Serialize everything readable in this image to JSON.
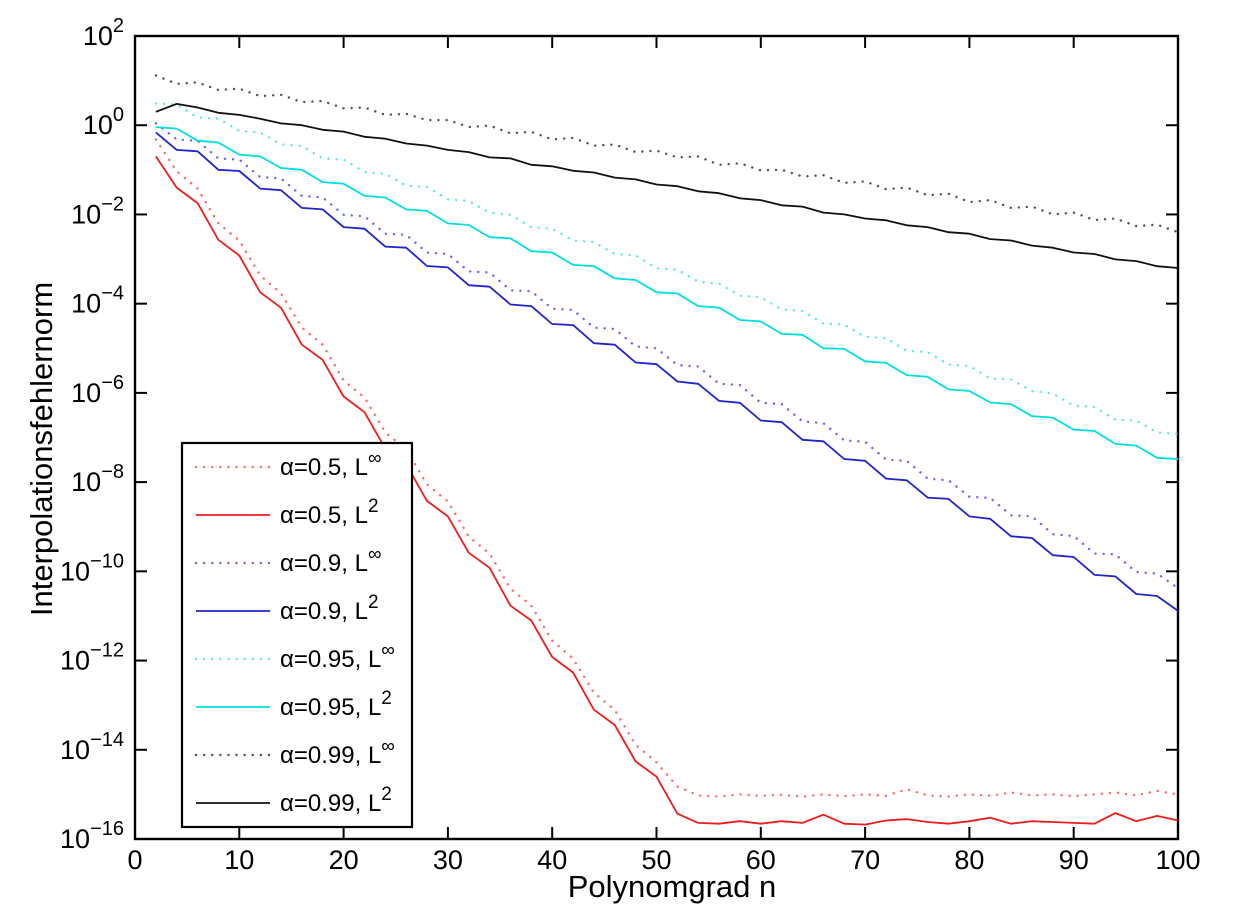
{
  "figure": {
    "background": "#ffffff",
    "axis_color": "#000000"
  },
  "chart_data": {
    "type": "line",
    "title": "",
    "xlabel": "Polynomgrad n",
    "ylabel": "Interpolationsfehlernorm",
    "xlim": [
      0,
      100
    ],
    "ylim_exponents": [
      -16,
      2
    ],
    "x_ticks": [
      0,
      10,
      20,
      30,
      40,
      50,
      60,
      70,
      80,
      90,
      100
    ],
    "y_tick_exponents": [
      2,
      0,
      -2,
      -4,
      -6,
      -8,
      -10,
      -12,
      -14,
      -16
    ],
    "grid": false,
    "legend_position": "lower-left",
    "x": [
      2,
      4,
      6,
      8,
      10,
      12,
      14,
      16,
      18,
      20,
      22,
      24,
      26,
      28,
      30,
      32,
      34,
      36,
      38,
      40,
      42,
      44,
      46,
      48,
      50,
      52,
      54,
      56,
      58,
      60,
      62,
      64,
      66,
      68,
      70,
      72,
      74,
      76,
      78,
      80,
      82,
      84,
      86,
      88,
      90,
      92,
      94,
      96,
      98,
      100
    ],
    "series": [
      {
        "name": "alpha-0.5-Linf",
        "label_base": "α=0.5, L",
        "label_sup": "∞",
        "color": "#ff6a6a",
        "style": "dotted",
        "values": [
          0.48,
          0.093,
          0.038,
          0.0063,
          0.0026,
          0.00043,
          0.00017,
          2.9e-05,
          1.2e-05,
          1.9e-06,
          7.9e-07,
          1.3e-07,
          5.4e-08,
          8.9e-09,
          3.7e-09,
          6e-10,
          2.5e-10,
          4.1e-11,
          1.7e-11,
          2.8e-12,
          1.1e-12,
          1.9e-13,
          7.8e-14,
          1.3e-14,
          5.2e-15,
          1.5e-15,
          9.5e-16,
          8.9e-16,
          1e-15,
          9.3e-16,
          9.8e-16,
          8.9e-16,
          1e-15,
          9.1e-16,
          1e-15,
          9.3e-16,
          1.3e-15,
          9.5e-16,
          8.9e-16,
          1e-15,
          9.3e-16,
          1.1e-15,
          9.5e-16,
          1e-15,
          9.1e-16,
          1e-15,
          1.1e-15,
          9.5e-16,
          1.2e-15,
          1e-15
        ]
      },
      {
        "name": "alpha-0.5-L2",
        "label_base": "α=0.5, L",
        "label_sup": "2",
        "color": "#ee1c1c",
        "style": "solid",
        "values": [
          0.2,
          0.04,
          0.018,
          0.0027,
          0.0012,
          0.00018,
          8.1e-05,
          1.2e-05,
          5.5e-06,
          8.3e-07,
          3.7e-07,
          5.6e-08,
          2.5e-08,
          3.8e-09,
          1.7e-09,
          2.6e-10,
          1.2e-10,
          1.7e-11,
          7.9e-12,
          1.2e-12,
          5.4e-13,
          7.9e-14,
          3.6e-14,
          5.5e-15,
          2.5e-15,
          3.7e-16,
          2.3e-16,
          2.2e-16,
          2.5e-16,
          2.2e-16,
          2.5e-16,
          2.3e-16,
          3.5e-16,
          2.2e-16,
          2.1e-16,
          2.6e-16,
          2.8e-16,
          2.4e-16,
          2.2e-16,
          2.5e-16,
          3e-16,
          2.2e-16,
          2.5e-16,
          2.4e-16,
          2.3e-16,
          2.2e-16,
          3.8e-16,
          2.5e-16,
          3.3e-16,
          2.6e-16
        ]
      },
      {
        "name": "alpha-0.9-Linf",
        "label_base": "α=0.9, L",
        "label_sup": "∞",
        "color": "#6a6aee",
        "style": "dotted",
        "values": [
          1.1,
          0.48,
          0.45,
          0.18,
          0.17,
          0.069,
          0.064,
          0.026,
          0.024,
          0.0098,
          0.0091,
          0.0037,
          0.0035,
          0.0014,
          0.0013,
          0.00053,
          0.0005,
          0.0002,
          0.00019,
          7.7e-05,
          7.2e-05,
          2.9e-05,
          2.7e-05,
          1.1e-05,
          1e-05,
          4.2e-06,
          3.9e-06,
          1.6e-06,
          1.5e-06,
          6e-07,
          5.6e-07,
          2.3e-07,
          2.1e-07,
          8.6e-08,
          8e-08,
          3.2e-08,
          3e-08,
          1.2e-08,
          1.1e-08,
          4.7e-09,
          4.4e-09,
          1.8e-09,
          1.7e-09,
          6.8e-10,
          6.2e-10,
          2.5e-10,
          2.4e-10,
          9.6e-11,
          8.9e-11,
          4.2e-11
        ]
      },
      {
        "name": "alpha-0.9-L2",
        "label_base": "α=0.9, L",
        "label_sup": "2",
        "color": "#2222cc",
        "style": "solid",
        "values": [
          0.69,
          0.28,
          0.26,
          0.1,
          0.094,
          0.038,
          0.035,
          0.014,
          0.013,
          0.0052,
          0.0048,
          0.0019,
          0.0018,
          0.0007,
          0.00065,
          0.00026,
          0.00024,
          9.6e-05,
          8.8e-05,
          3.5e-05,
          3.3e-05,
          1.3e-05,
          1.2e-05,
          4.8e-06,
          4.4e-06,
          1.8e-06,
          1.6e-06,
          6.6e-07,
          6e-07,
          2.4e-07,
          2.2e-07,
          8.9e-08,
          8.2e-08,
          3.3e-08,
          3e-08,
          1.2e-08,
          1.1e-08,
          4.5e-09,
          4.2e-09,
          1.7e-09,
          1.5e-09,
          6.1e-10,
          5.6e-10,
          2.3e-10,
          2.1e-10,
          8.3e-11,
          7.7e-11,
          3.1e-11,
          2.8e-11,
          1.3e-11
        ]
      },
      {
        "name": "alpha-0.95-Linf",
        "label_base": "α=0.95, L",
        "label_sup": "∞",
        "color": "#63e8e8",
        "style": "dotted",
        "values": [
          3.1,
          2.9,
          1.5,
          1.4,
          0.75,
          0.69,
          0.37,
          0.34,
          0.18,
          0.17,
          0.089,
          0.082,
          0.044,
          0.041,
          0.022,
          0.02,
          0.011,
          0.0098,
          0.0052,
          0.0048,
          0.0026,
          0.0024,
          0.0013,
          0.0012,
          0.00062,
          0.00058,
          0.00031,
          0.00028,
          0.00015,
          0.00014,
          7.4e-05,
          6.9e-05,
          3.6e-05,
          3.4e-05,
          1.8e-05,
          1.7e-05,
          8.8e-06,
          8.2e-06,
          4.3e-06,
          4e-06,
          2.1e-06,
          2e-06,
          1.1e-06,
          9.7e-07,
          5.2e-07,
          4.8e-07,
          2.5e-07,
          2.4e-07,
          1.3e-07,
          1.2e-07
        ]
      },
      {
        "name": "alpha-0.95-L2",
        "label_base": "α=0.95, L",
        "label_sup": "2",
        "color": "#00dede",
        "style": "solid",
        "values": [
          0.91,
          0.84,
          0.45,
          0.41,
          0.22,
          0.2,
          0.11,
          0.1,
          0.053,
          0.049,
          0.026,
          0.024,
          0.013,
          0.012,
          0.0063,
          0.0058,
          0.0031,
          0.0029,
          0.0015,
          0.0014,
          0.00074,
          0.00069,
          0.00037,
          0.00034,
          0.00018,
          0.00017,
          8.8e-05,
          8.1e-05,
          4.3e-05,
          4e-05,
          2.1e-05,
          2e-05,
          1e-05,
          9.7e-06,
          5.1e-06,
          4.7e-06,
          2.5e-06,
          2.3e-06,
          1.2e-06,
          1.1e-06,
          6.1e-07,
          5.6e-07,
          3e-07,
          2.8e-07,
          1.5e-07,
          1.4e-07,
          7.2e-08,
          6.6e-08,
          3.5e-08,
          3.3e-08
        ]
      },
      {
        "name": "alpha-0.99-Linf",
        "label_base": "α=0.99, L",
        "label_sup": "∞",
        "color": "#555555",
        "style": "dotted",
        "values": [
          13,
          8.5,
          9.1,
          6.2,
          6.6,
          4.5,
          4.8,
          3.3,
          3.5,
          2.4,
          2.5,
          1.7,
          1.8,
          1.3,
          1.3,
          0.91,
          0.98,
          0.66,
          0.71,
          0.48,
          0.52,
          0.35,
          0.37,
          0.25,
          0.27,
          0.19,
          0.2,
          0.13,
          0.14,
          0.097,
          0.1,
          0.071,
          0.076,
          0.051,
          0.055,
          0.037,
          0.04,
          0.027,
          0.029,
          0.019,
          0.021,
          0.014,
          0.015,
          0.01,
          0.011,
          0.0075,
          0.0081,
          0.0055,
          0.0059,
          0.004
        ]
      },
      {
        "name": "alpha-0.99-L2",
        "label_base": "α=0.99, L",
        "label_sup": "2",
        "color": "#111111",
        "style": "solid",
        "values": [
          2.0,
          3.0,
          2.5,
          1.9,
          1.7,
          1.4,
          1.1,
          1.0,
          0.79,
          0.72,
          0.55,
          0.5,
          0.39,
          0.35,
          0.28,
          0.25,
          0.19,
          0.18,
          0.13,
          0.12,
          0.095,
          0.087,
          0.067,
          0.061,
          0.047,
          0.043,
          0.033,
          0.03,
          0.023,
          0.021,
          0.016,
          0.015,
          0.011,
          0.01,
          0.0081,
          0.0074,
          0.0057,
          0.0052,
          0.004,
          0.0037,
          0.0028,
          0.0026,
          0.002,
          0.0018,
          0.0014,
          0.0013,
          0.00098,
          0.0009,
          0.00069,
          0.00063
        ]
      }
    ]
  }
}
